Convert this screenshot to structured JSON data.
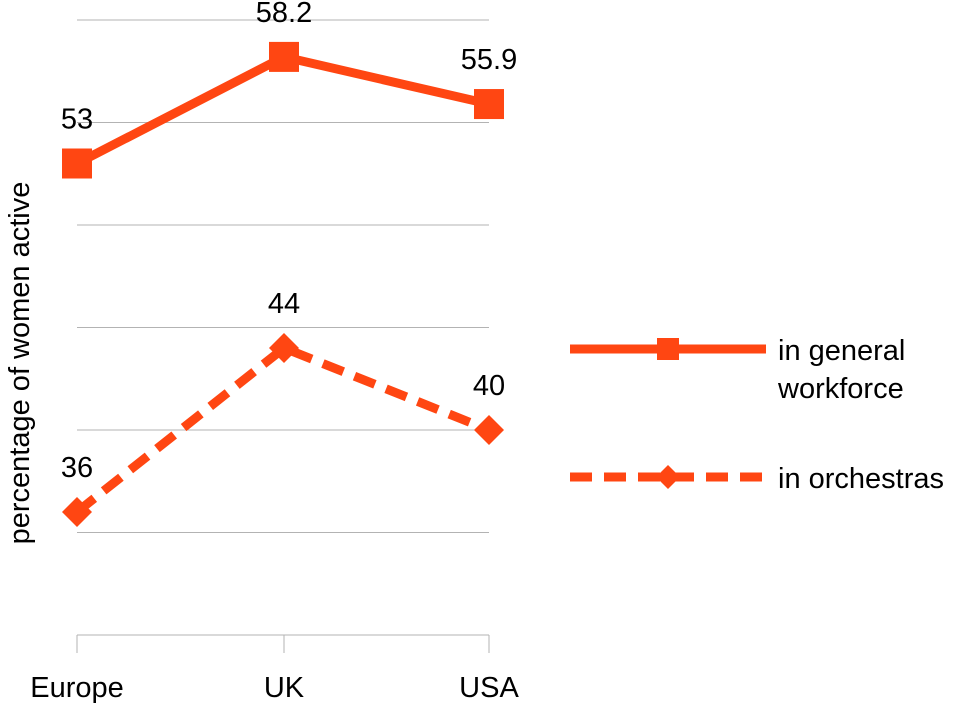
{
  "chart_data": {
    "type": "line",
    "categories": [
      "Europe",
      "UK",
      "USA"
    ],
    "ylabel": "percentage of women active",
    "xlabel": "",
    "ylim": [
      30,
      60
    ],
    "grid": true,
    "legend_position": "right",
    "series": [
      {
        "name_lines": [
          "in general",
          "workforce"
        ],
        "values": [
          53,
          58.2,
          55.9
        ],
        "labels": [
          "53",
          "58.2",
          "55.9"
        ],
        "marker": "square",
        "line_style": "solid",
        "color": "#FF4612"
      },
      {
        "name_lines": [
          "in orchestras"
        ],
        "values": [
          36,
          44,
          40
        ],
        "labels": [
          "36",
          "44",
          "40"
        ],
        "marker": "diamond",
        "line_style": "dashed",
        "color": "#FF4612"
      }
    ]
  },
  "colors": {
    "series": "#FF4612",
    "grid": "#b3b3b3"
  }
}
